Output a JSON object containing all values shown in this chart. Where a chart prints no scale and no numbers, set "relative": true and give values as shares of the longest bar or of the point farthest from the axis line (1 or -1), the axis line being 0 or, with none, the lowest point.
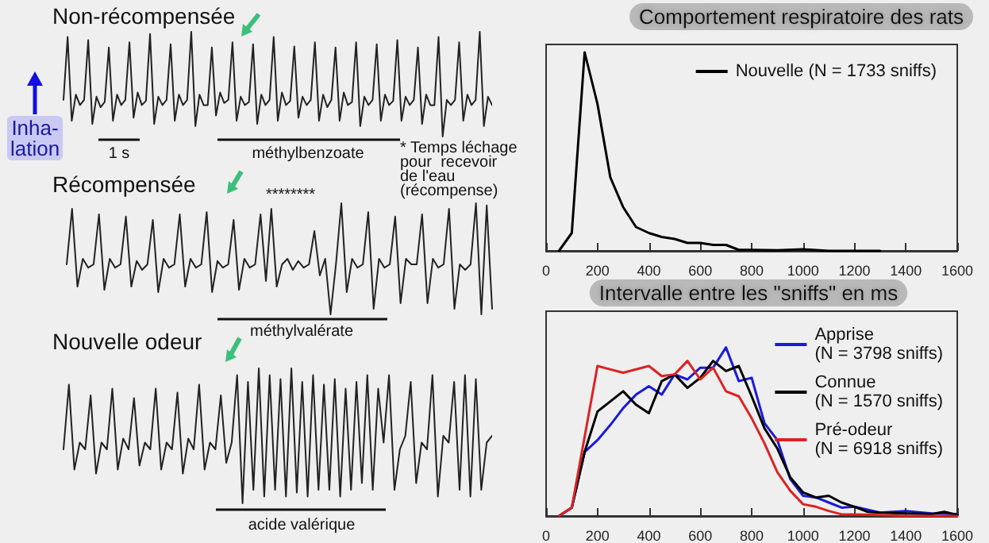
{
  "chart_data": [
    {
      "type": "line",
      "title": "Non-récompensée",
      "relative": true,
      "tick_labels": false,
      "marker": "none",
      "color": "#222222",
      "annotations": [
        "1 s",
        "méthylbenzoate",
        "Inha-\nlation"
      ],
      "categories": [
        null,
        null,
        null,
        null,
        null,
        null,
        null,
        null,
        null,
        null,
        null,
        null,
        null,
        null,
        null,
        null,
        null,
        null,
        null,
        null,
        null,
        null,
        null,
        null,
        null,
        null,
        null,
        null,
        null,
        null,
        null,
        null,
        null,
        null,
        null,
        null,
        null,
        null,
        null,
        null,
        null,
        null,
        null,
        null,
        null,
        null,
        null,
        null,
        null,
        null,
        null,
        null,
        null,
        null,
        null,
        null,
        null,
        null,
        null,
        null,
        null,
        null,
        null,
        null,
        null,
        null,
        null,
        null,
        null,
        null,
        null,
        null,
        null,
        null,
        null,
        null,
        null,
        null,
        null,
        null,
        null,
        null,
        null,
        null,
        null,
        null,
        null,
        null,
        null,
        null,
        null,
        null,
        null,
        null,
        null,
        null,
        null,
        null,
        null,
        null,
        null,
        null,
        null,
        null,
        null
      ],
      "values": [
        0.35,
        0.95,
        0.15,
        0.4,
        0.3,
        0.35,
        0.92,
        0.12,
        0.38,
        0.28,
        0.33,
        0.85,
        0.15,
        0.4,
        0.3,
        0.35,
        0.9,
        0.18,
        0.42,
        0.3,
        0.34,
        0.98,
        0.12,
        0.38,
        0.3,
        0.35,
        0.88,
        0.15,
        0.4,
        0.3,
        0.35,
        1.0,
        0.1,
        0.4,
        0.3,
        0.3,
        0.85,
        0.2,
        0.42,
        0.32,
        0.35,
        0.9,
        0.15,
        0.38,
        0.3,
        0.33,
        0.88,
        0.12,
        0.4,
        0.3,
        0.35,
        0.95,
        0.15,
        0.42,
        0.3,
        0.34,
        0.86,
        0.18,
        0.38,
        0.3,
        0.35,
        0.9,
        0.15,
        0.4,
        0.28,
        0.35,
        0.85,
        0.15,
        0.42,
        0.3,
        0.33,
        0.9,
        0.1,
        0.38,
        0.3,
        0.35,
        0.88,
        0.15,
        0.4,
        0.3,
        0.34,
        0.92,
        0.15,
        0.38,
        0.3,
        0.35,
        0.85,
        0.12,
        0.4,
        0.3,
        0.3,
        0.95,
        0.0,
        0.35,
        0.3,
        0.35,
        0.9,
        0.15,
        0.4,
        0.3,
        0.35,
        1.0,
        0.1,
        0.38,
        0.3
      ]
    },
    {
      "type": "line",
      "title": "Récompensée",
      "relative": true,
      "tick_labels": false,
      "marker": "none",
      "color": "#222222",
      "annotations": [
        "********",
        "méthylvalérate",
        "* Temps léchage\npour  recevoir\nde l'eau\n(récompense)"
      ],
      "categories": [
        null,
        null,
        null,
        null,
        null,
        null,
        null,
        null,
        null,
        null,
        null,
        null,
        null,
        null,
        null,
        null,
        null,
        null,
        null,
        null,
        null,
        null,
        null,
        null,
        null,
        null,
        null,
        null,
        null,
        null,
        null,
        null,
        null,
        null,
        null,
        null,
        null,
        null,
        null,
        null,
        null,
        null,
        null,
        null,
        null,
        null,
        null,
        null,
        null,
        null,
        null,
        null,
        null,
        null,
        null,
        null,
        null,
        null,
        null,
        null,
        null,
        null,
        null,
        null,
        null,
        null,
        null,
        null,
        null,
        null,
        null,
        null,
        null,
        null,
        null,
        null,
        null,
        null,
        null,
        null
      ],
      "values": [
        0.45,
        0.95,
        0.25,
        0.5,
        0.42,
        0.45,
        0.9,
        0.22,
        0.5,
        0.42,
        0.45,
        0.88,
        0.25,
        0.48,
        0.4,
        0.45,
        0.85,
        0.2,
        0.5,
        0.42,
        0.45,
        0.9,
        0.25,
        0.5,
        0.42,
        0.45,
        0.92,
        0.2,
        0.48,
        0.42,
        0.45,
        0.85,
        0.22,
        0.5,
        0.42,
        0.45,
        0.9,
        0.3,
        0.95,
        0.25,
        0.45,
        0.5,
        0.4,
        0.48,
        0.42,
        0.45,
        0.75,
        0.35,
        0.5,
        0.0,
        0.45,
        1.0,
        0.2,
        0.5,
        0.42,
        0.45,
        0.92,
        0.05,
        0.5,
        0.42,
        0.45,
        0.88,
        0.1,
        0.5,
        0.45,
        0.45,
        0.9,
        0.1,
        0.5,
        0.42,
        0.45,
        0.95,
        0.05,
        0.45,
        0.4,
        0.45,
        1.0,
        0.0,
        0.98,
        0.05
      ]
    },
    {
      "type": "line",
      "title": "Nouvelle odeur",
      "relative": true,
      "tick_labels": false,
      "marker": "none",
      "color": "#222222",
      "annotations": [
        "acide valérique"
      ],
      "categories": [
        null,
        null,
        null,
        null,
        null,
        null,
        null,
        null,
        null,
        null,
        null,
        null,
        null,
        null,
        null,
        null,
        null,
        null,
        null,
        null,
        null,
        null,
        null,
        null,
        null,
        null,
        null,
        null,
        null,
        null,
        null,
        null,
        null,
        null,
        null,
        null,
        null,
        null,
        null,
        null,
        null,
        null,
        null,
        null,
        null,
        null,
        null,
        null,
        null,
        null,
        null,
        null,
        null,
        null,
        null,
        null,
        null,
        null,
        null,
        null,
        null,
        null,
        null,
        null,
        null,
        null,
        null,
        null,
        null,
        null,
        null,
        null,
        null,
        null,
        null,
        null,
        null,
        null,
        null,
        null
      ],
      "values": [
        0.4,
        0.88,
        0.25,
        0.45,
        0.4,
        0.8,
        0.22,
        0.45,
        0.4,
        0.85,
        0.25,
        0.48,
        0.4,
        0.78,
        0.28,
        0.45,
        0.4,
        0.85,
        0.25,
        0.45,
        0.4,
        0.82,
        0.22,
        0.48,
        0.4,
        0.88,
        0.25,
        0.45,
        0.4,
        0.8,
        0.3,
        0.45,
        0.95,
        0.0,
        0.9,
        0.1,
        1.0,
        0.05,
        0.95,
        0.1,
        0.92,
        0.05,
        1.0,
        0.08,
        0.9,
        0.05,
        0.95,
        0.1,
        0.88,
        0.1,
        0.92,
        0.05,
        0.85,
        0.1,
        0.9,
        0.15,
        0.95,
        0.1,
        0.85,
        0.45,
        0.95,
        0.1,
        0.4,
        0.5,
        0.9,
        0.15,
        0.45,
        0.4,
        0.95,
        0.05,
        0.5,
        0.45,
        0.9,
        0.1,
        0.95,
        0.05,
        0.92,
        0.1,
        0.45,
        0.5
      ]
    },
    {
      "type": "line",
      "title": "Comportement respiratoire des rats",
      "relative": true,
      "tick_labels": "x",
      "marker": "none",
      "legend": "top right",
      "xlim": [
        0,
        1600
      ],
      "xticks": [
        0,
        200,
        400,
        600,
        800,
        1000,
        1200,
        1400,
        1600
      ],
      "series": [
        {
          "name": "Nouvelle (N = 1733 sniffs)",
          "color": "#000000",
          "x": [
            50,
            100,
            150,
            200,
            250,
            300,
            350,
            400,
            450,
            500,
            550,
            600,
            650,
            700,
            750,
            800,
            900,
            1000,
            1100,
            1200,
            1300
          ],
          "values": [
            0,
            0.09,
            1,
            0.74,
            0.37,
            0.22,
            0.12,
            0.09,
            0.07,
            0.06,
            0.04,
            0.04,
            0.03,
            0.03,
            0.005,
            0.005,
            0.003,
            0.008,
            0,
            0,
            0
          ]
        }
      ]
    },
    {
      "type": "line",
      "title": "Intervalle entre les \"sniffs\" en ms",
      "relative": true,
      "tick_labels": "x",
      "marker": "none",
      "legend": "top right",
      "xlim": [
        0,
        1600
      ],
      "xticks": [
        0,
        200,
        400,
        600,
        800,
        1000,
        1200,
        1400,
        1600
      ],
      "series": [
        {
          "name": "Apprise\n(N = 3798 sniffs)",
          "color": "#1a1adc",
          "x": [
            50,
            100,
            150,
            200,
            250,
            300,
            350,
            400,
            450,
            500,
            550,
            600,
            650,
            700,
            750,
            800,
            850,
            900,
            950,
            1000,
            1050,
            1100,
            1150,
            1200,
            1300,
            1400,
            1500,
            1600
          ],
          "values": [
            0,
            0.05,
            0.38,
            0.45,
            0.54,
            0.64,
            0.72,
            0.77,
            0.72,
            0.84,
            0.81,
            0.88,
            0.88,
            1,
            0.8,
            0.82,
            0.55,
            0.45,
            0.22,
            0.12,
            0.11,
            0.08,
            0.05,
            0.055,
            0.02,
            0.03,
            0.015,
            0.012
          ]
        },
        {
          "name": "Connue\n(N = 1570 sniffs)",
          "color": "#000000",
          "x": [
            50,
            100,
            150,
            200,
            300,
            350,
            400,
            450,
            500,
            550,
            600,
            650,
            700,
            750,
            800,
            850,
            900,
            950,
            1000,
            1050,
            1100,
            1150,
            1200,
            1250,
            1300,
            1400,
            1500,
            1550,
            1600
          ],
          "values": [
            0,
            0.05,
            0.38,
            0.62,
            0.74,
            0.66,
            0.61,
            0.8,
            0.84,
            0.76,
            0.82,
            0.92,
            0.86,
            0.89,
            0.71,
            0.52,
            0.4,
            0.23,
            0.14,
            0.11,
            0.12,
            0.08,
            0.055,
            0.025,
            0.02,
            0.015,
            0.012,
            0.025,
            0.006
          ]
        },
        {
          "name": "Pré-odeur\n(N = 6918 sniffs)",
          "color": "#dd2222",
          "x": [
            50,
            100,
            200,
            300,
            400,
            450,
            500,
            550,
            600,
            650,
            700,
            750,
            800,
            850,
            900,
            950,
            1000,
            1050,
            1100,
            1150,
            1200,
            1300,
            1400,
            1500,
            1600
          ],
          "values": [
            0,
            0.05,
            0.89,
            0.85,
            0.89,
            0.83,
            0.84,
            0.92,
            0.81,
            0.88,
            0.74,
            0.71,
            0.58,
            0.43,
            0.26,
            0.15,
            0.07,
            0.055,
            0.03,
            0.01,
            0.01,
            0.006,
            0,
            0,
            0
          ]
        }
      ]
    }
  ]
}
